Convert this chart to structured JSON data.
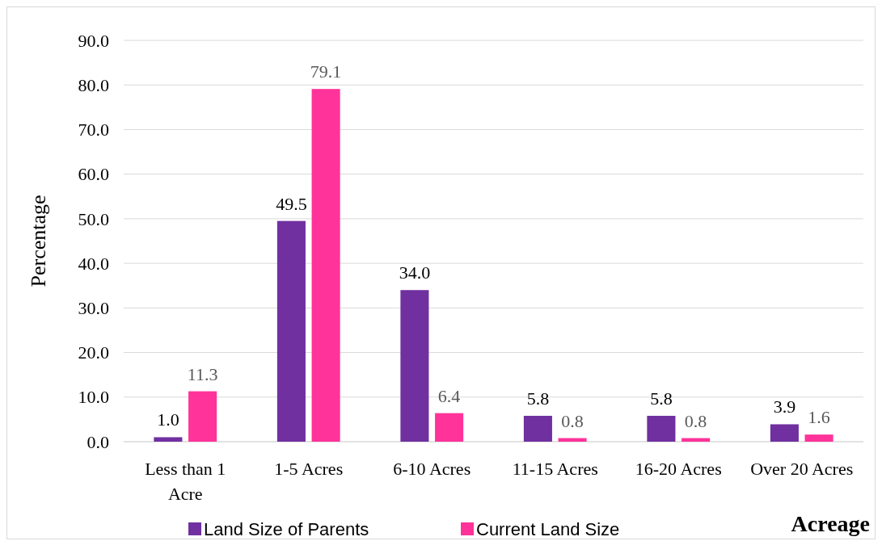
{
  "chart_data": {
    "type": "bar",
    "categories": [
      "Less than 1 Acre",
      "1-5 Acres",
      "6-10 Acres",
      "11-15 Acres",
      "16-20 Acres",
      "Over 20 Acres"
    ],
    "series": [
      {
        "name": "Land Size of Parents",
        "color": "#7030a0",
        "values": [
          1.0,
          49.5,
          34.0,
          5.8,
          5.8,
          3.9
        ],
        "value_labels": [
          "1.0",
          "49.5",
          "34.0",
          "5.8",
          "5.8",
          "3.9"
        ]
      },
      {
        "name": "Current Land Size",
        "color": "#ff3399",
        "values": [
          11.3,
          79.1,
          6.4,
          0.8,
          0.8,
          1.6
        ],
        "value_labels": [
          "11.3",
          "79.1",
          "6.4",
          "0.8",
          "0.8",
          "1.6"
        ]
      }
    ],
    "ylabel": "Percentage",
    "xlabel": "Acreage",
    "ylim": [
      0,
      90
    ],
    "yticks": [
      {
        "value": 0,
        "label": "0.0"
      },
      {
        "value": 10,
        "label": "10.0"
      },
      {
        "value": 20,
        "label": "20.0"
      },
      {
        "value": 30,
        "label": "30.0"
      },
      {
        "value": 40,
        "label": "40.0"
      },
      {
        "value": 50,
        "label": "50.0"
      },
      {
        "value": 60,
        "label": "60.0"
      },
      {
        "value": 70,
        "label": "70.0"
      },
      {
        "value": 80,
        "label": "80.0"
      },
      {
        "value": 90,
        "label": "90.0"
      }
    ],
    "grid": "y",
    "legend": "bottom"
  }
}
